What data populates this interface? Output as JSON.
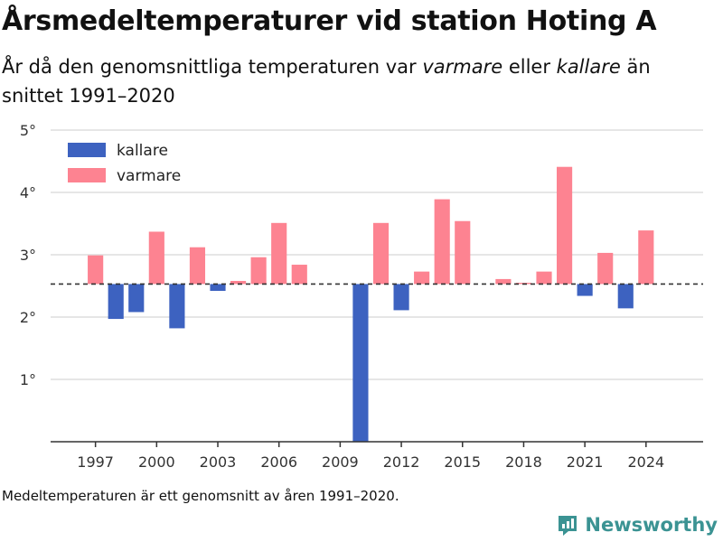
{
  "title": "Årsmedeltemperaturer vid station Hoting A",
  "subtitle": {
    "part1": "År då den genomsnittliga temperaturen var ",
    "warmer": "varmare",
    "part2": " eller ",
    "colder": "kallare",
    "part3": " än snittet 1991–2020"
  },
  "footnote": "Medeltemperaturen är ett genomsnitt av åren 1991–2020.",
  "brand": {
    "name": "Newsworthy",
    "icon": "newsworthy-logo-icon",
    "color": "#3b9393"
  },
  "colors": {
    "colder": "#3d62c0",
    "warmer": "#fd8391",
    "reference_line": "#333333",
    "grid": "#dddddd"
  },
  "chart_data": {
    "type": "bar",
    "baseline": 2.53,
    "ylim": [
      0,
      5
    ],
    "yticks": [
      1,
      2,
      3,
      4,
      5
    ],
    "ytick_labels": [
      "1°",
      "2°",
      "3°",
      "4°",
      "5°"
    ],
    "xlim": [
      1994.8,
      2026.8
    ],
    "xticks": [
      1997,
      2000,
      2003,
      2006,
      2009,
      2012,
      2015,
      2018,
      2021,
      2024
    ],
    "grid": true,
    "legend": {
      "position": "top-left",
      "entries": [
        {
          "label": "kallare",
          "color": "#3d62c0"
        },
        {
          "label": "varmare",
          "color": "#fd8391"
        }
      ]
    },
    "years": [
      1997,
      1998,
      1999,
      2000,
      2001,
      2002,
      2003,
      2004,
      2005,
      2006,
      2007,
      2010,
      2011,
      2012,
      2013,
      2014,
      2015,
      2017,
      2018,
      2019,
      2020,
      2021,
      2022,
      2023,
      2024
    ],
    "values": [
      2.99,
      1.97,
      2.08,
      3.37,
      1.82,
      3.12,
      2.42,
      2.58,
      2.96,
      3.51,
      2.84,
      0.0,
      3.51,
      2.11,
      2.73,
      3.89,
      3.54,
      2.61,
      2.55,
      2.73,
      4.41,
      2.34,
      3.03,
      2.14,
      3.39
    ]
  }
}
